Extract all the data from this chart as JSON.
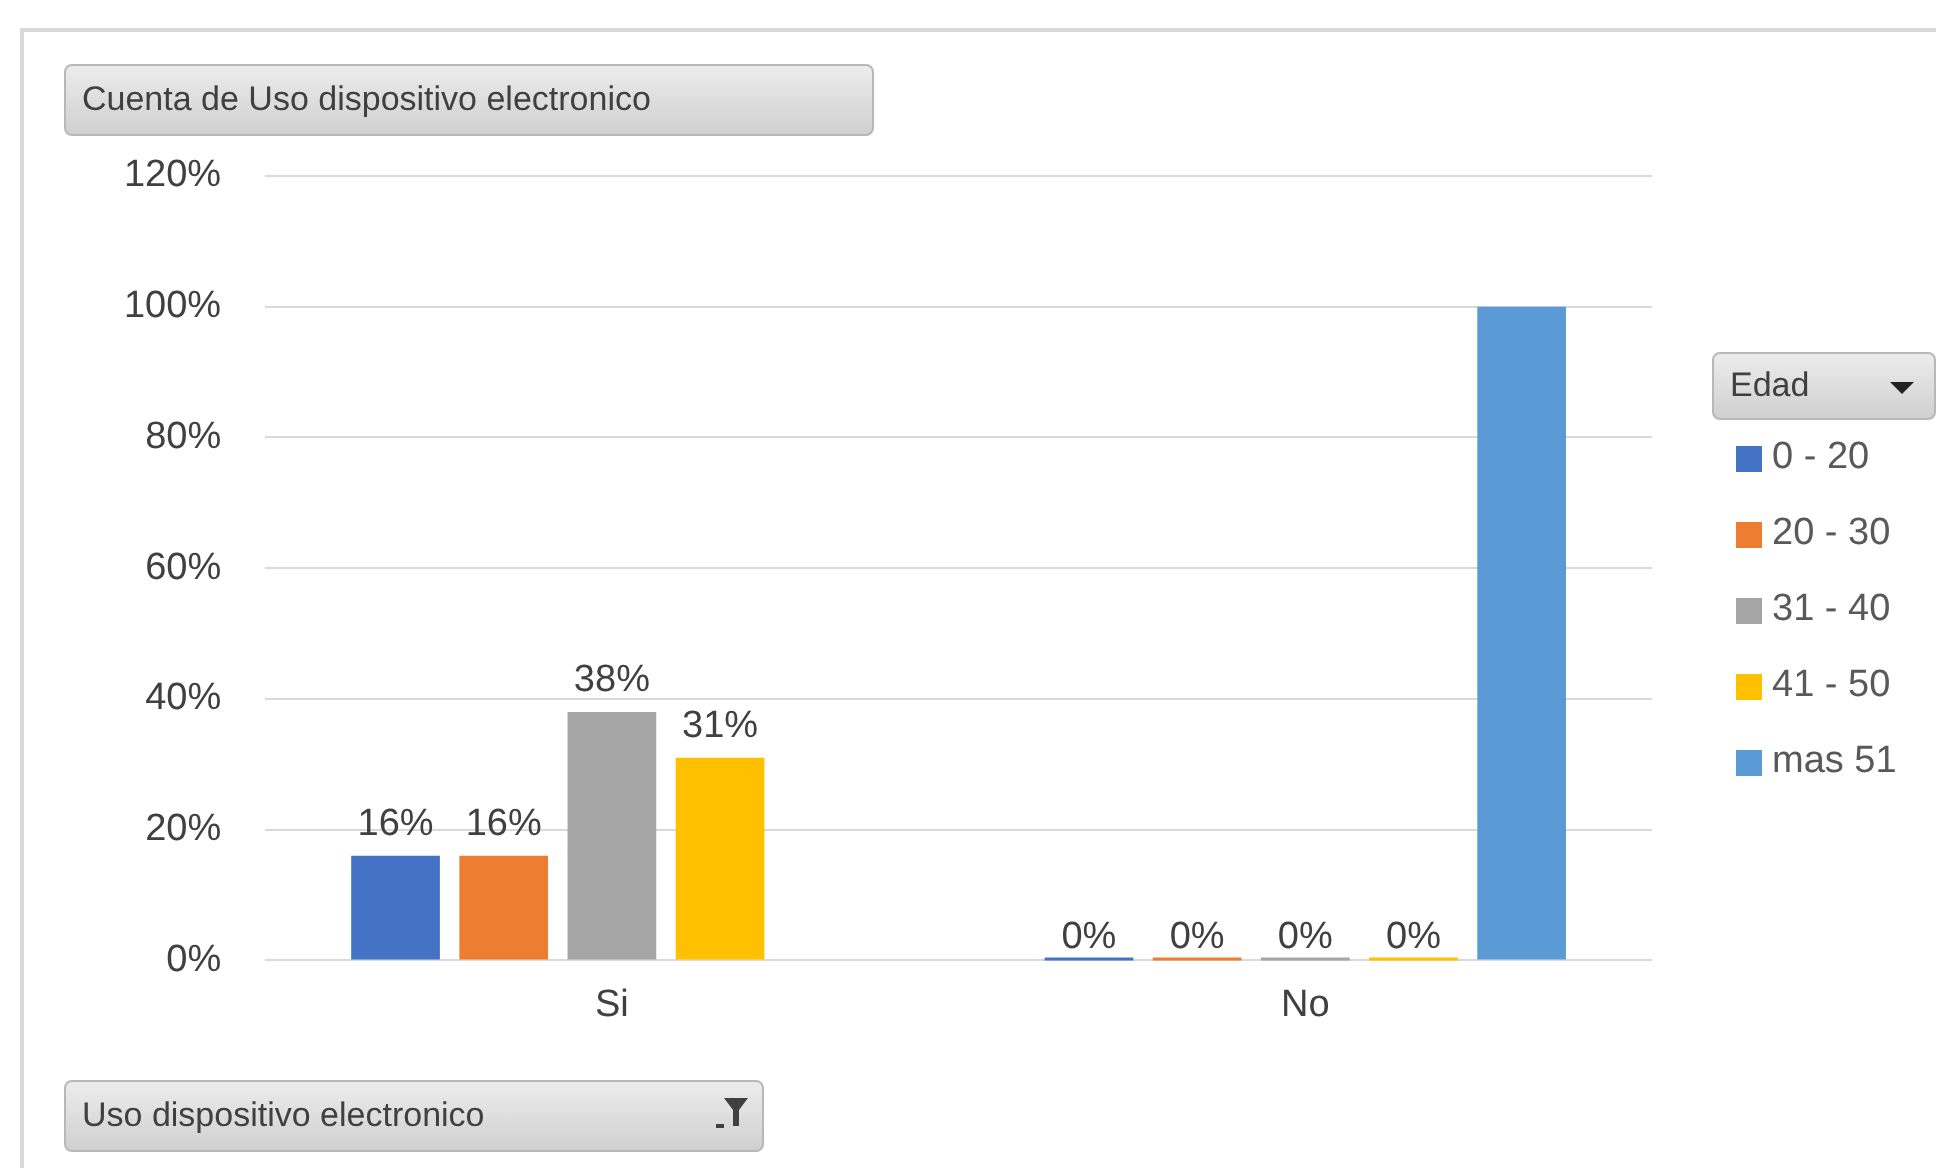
{
  "chart_data": {
    "type": "bar",
    "title": "Cuenta de Uso dispositivo electronico",
    "xlabel": "Uso dispositivo electronico",
    "legend_title": "Edad",
    "categories": [
      "Si",
      "No"
    ],
    "series": [
      {
        "name": "0 - 20",
        "color": "#4472c4",
        "values": [
          16,
          0
        ],
        "value_labels": [
          "16%",
          "0%"
        ]
      },
      {
        "name": "20 - 30",
        "color": "#ed7d31",
        "values": [
          16,
          0
        ],
        "value_labels": [
          "16%",
          "0%"
        ]
      },
      {
        "name": "31 - 40",
        "color": "#a5a5a5",
        "values": [
          38,
          0
        ],
        "value_labels": [
          "38%",
          "0%"
        ]
      },
      {
        "name": "41 - 50",
        "color": "#ffc000",
        "values": [
          31,
          0
        ],
        "value_labels": [
          "31%",
          "0%"
        ]
      },
      {
        "name": "mas 51",
        "color": "#5b9bd5",
        "values": [
          null,
          100
        ],
        "value_labels": [
          null,
          null
        ]
      }
    ],
    "ylim": [
      0,
      120
    ],
    "yticks": [
      {
        "value": 0,
        "label": "0%"
      },
      {
        "value": 20,
        "label": "20%"
      },
      {
        "value": 40,
        "label": "40%"
      },
      {
        "value": 60,
        "label": "60%"
      },
      {
        "value": 80,
        "label": "80%"
      },
      {
        "value": 100,
        "label": "100%"
      },
      {
        "value": 120,
        "label": "120%"
      }
    ],
    "grid": "y",
    "legend": "right"
  }
}
